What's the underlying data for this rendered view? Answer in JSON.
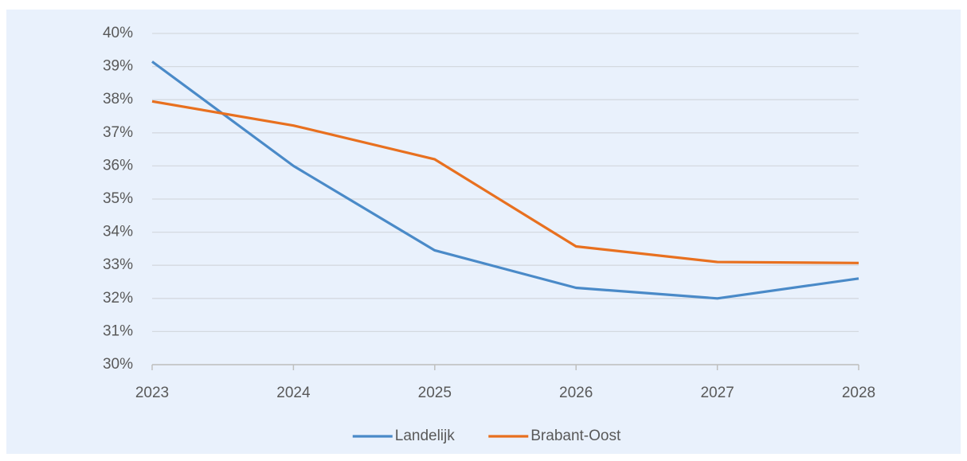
{
  "chart_data": {
    "type": "line",
    "categories": [
      "2023",
      "2024",
      "2025",
      "2026",
      "2027",
      "2028"
    ],
    "series": [
      {
        "name": "Landelijk",
        "color": "#4a8ac8",
        "values": [
          39.15,
          36.0,
          33.45,
          32.32,
          32.0,
          32.6
        ]
      },
      {
        "name": "Brabant-Oost",
        "color": "#e8701f",
        "values": [
          37.95,
          37.22,
          36.2,
          33.57,
          33.1,
          33.07
        ]
      }
    ],
    "ylim": [
      30,
      40
    ],
    "yticks": [
      {
        "value": 30,
        "label": "30%"
      },
      {
        "value": 31,
        "label": "31%"
      },
      {
        "value": 32,
        "label": "32%"
      },
      {
        "value": 33,
        "label": "33%"
      },
      {
        "value": 34,
        "label": "34%"
      },
      {
        "value": 35,
        "label": "35%"
      },
      {
        "value": 36,
        "label": "36%"
      },
      {
        "value": 37,
        "label": "37%"
      },
      {
        "value": 38,
        "label": "38%"
      },
      {
        "value": 39,
        "label": "39%"
      },
      {
        "value": 40,
        "label": "40%"
      }
    ],
    "grid": true,
    "legend": "bottom"
  }
}
